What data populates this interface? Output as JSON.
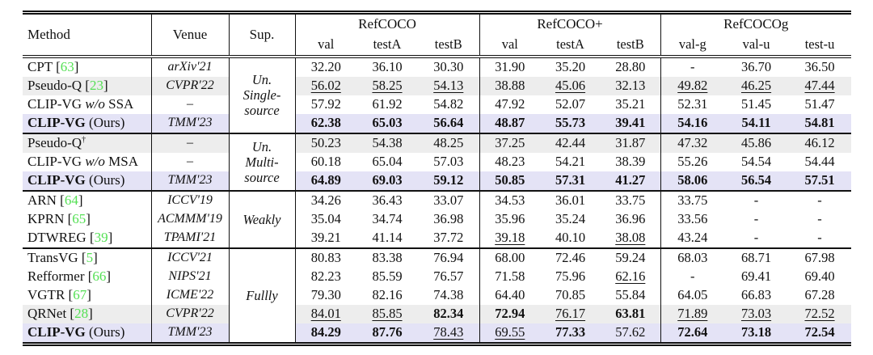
{
  "colors": {
    "citation_green": "#55e055",
    "row_gray": "#ededed",
    "row_lavender": "#e4e3f6",
    "rule_black": "#111111"
  },
  "table": {
    "headers": {
      "method": "Method",
      "venue": "Venue",
      "sup": "Sup.",
      "groups": [
        {
          "label": "RefCOCO",
          "cols": [
            "val",
            "testA",
            "testB"
          ]
        },
        {
          "label": "RefCOCO+",
          "cols": [
            "val",
            "testA",
            "testB"
          ]
        },
        {
          "label": "RefCOCOg",
          "cols": [
            "val-g",
            "val-u",
            "test-u"
          ]
        }
      ]
    },
    "sections": [
      {
        "sup": "Un.\nSingle-\nsource",
        "rows": [
          {
            "bg": "white",
            "venue": "arXiv'21",
            "method": [
              {
                "t": "CPT ["
              },
              {
                "t": "63",
                "s": "cite"
              },
              {
                "t": "]"
              }
            ],
            "values": [
              {
                "v": "32.20",
                "f": ""
              },
              {
                "v": "36.10",
                "f": ""
              },
              {
                "v": "30.30",
                "f": ""
              },
              {
                "v": "31.90",
                "f": ""
              },
              {
                "v": "35.20",
                "f": ""
              },
              {
                "v": "28.80",
                "f": ""
              },
              {
                "v": "-",
                "f": ""
              },
              {
                "v": "36.70",
                "f": ""
              },
              {
                "v": "36.50",
                "f": ""
              }
            ]
          },
          {
            "bg": "gray",
            "venue": "CVPR'22",
            "method": [
              {
                "t": "Pseudo-Q ["
              },
              {
                "t": "23",
                "s": "cite"
              },
              {
                "t": "]"
              }
            ],
            "values": [
              {
                "v": "56.02",
                "f": "u"
              },
              {
                "v": "58.25",
                "f": "u"
              },
              {
                "v": "54.13",
                "f": "u"
              },
              {
                "v": "38.88",
                "f": ""
              },
              {
                "v": "45.06",
                "f": "u"
              },
              {
                "v": "32.13",
                "f": ""
              },
              {
                "v": "49.82",
                "f": "u"
              },
              {
                "v": "46.25",
                "f": "u"
              },
              {
                "v": "47.44",
                "f": "u"
              }
            ]
          },
          {
            "bg": "white",
            "venue": "–",
            "method": [
              {
                "t": "CLIP-VG "
              },
              {
                "t": "w/o",
                "s": "i"
              },
              {
                "t": " SSA"
              }
            ],
            "values": [
              {
                "v": "57.92",
                "f": ""
              },
              {
                "v": "61.92",
                "f": ""
              },
              {
                "v": "54.82",
                "f": ""
              },
              {
                "v": "47.92",
                "f": ""
              },
              {
                "v": "52.07",
                "f": ""
              },
              {
                "v": "35.21",
                "f": ""
              },
              {
                "v": "52.31",
                "f": ""
              },
              {
                "v": "51.45",
                "f": ""
              },
              {
                "v": "51.47",
                "f": ""
              }
            ]
          },
          {
            "bg": "lav",
            "venue": "TMM'23",
            "method": [
              {
                "t": "CLIP-VG",
                "s": "b"
              },
              {
                "t": " (Ours)"
              }
            ],
            "values": [
              {
                "v": "62.38",
                "f": "b"
              },
              {
                "v": "65.03",
                "f": "b"
              },
              {
                "v": "56.64",
                "f": "b"
              },
              {
                "v": "48.87",
                "f": "b"
              },
              {
                "v": "55.73",
                "f": "b"
              },
              {
                "v": "39.41",
                "f": "b"
              },
              {
                "v": "54.16",
                "f": "b"
              },
              {
                "v": "54.11",
                "f": "b"
              },
              {
                "v": "54.81",
                "f": "b"
              }
            ]
          }
        ]
      },
      {
        "sup": "Un.\nMulti-\nsource",
        "rows": [
          {
            "bg": "gray",
            "venue": "–",
            "method": [
              {
                "t": "Pseudo-Q"
              },
              {
                "t": "†",
                "s": "dag"
              }
            ],
            "values": [
              {
                "v": "50.23",
                "f": ""
              },
              {
                "v": "54.38",
                "f": ""
              },
              {
                "v": "48.25",
                "f": ""
              },
              {
                "v": "37.25",
                "f": ""
              },
              {
                "v": "42.44",
                "f": ""
              },
              {
                "v": "31.87",
                "f": ""
              },
              {
                "v": "47.32",
                "f": ""
              },
              {
                "v": "45.86",
                "f": ""
              },
              {
                "v": "46.12",
                "f": ""
              }
            ]
          },
          {
            "bg": "white",
            "venue": "–",
            "method": [
              {
                "t": "CLIP-VG "
              },
              {
                "t": "w/o",
                "s": "i"
              },
              {
                "t": " MSA"
              }
            ],
            "values": [
              {
                "v": "60.18",
                "f": ""
              },
              {
                "v": "65.04",
                "f": ""
              },
              {
                "v": "57.03",
                "f": ""
              },
              {
                "v": "48.23",
                "f": ""
              },
              {
                "v": "54.21",
                "f": ""
              },
              {
                "v": "38.39",
                "f": ""
              },
              {
                "v": "55.26",
                "f": ""
              },
              {
                "v": "54.54",
                "f": ""
              },
              {
                "v": "54.44",
                "f": ""
              }
            ]
          },
          {
            "bg": "lav",
            "venue": "TMM'23",
            "method": [
              {
                "t": "CLIP-VG",
                "s": "b"
              },
              {
                "t": " (Ours)"
              }
            ],
            "values": [
              {
                "v": "64.89",
                "f": "b"
              },
              {
                "v": "69.03",
                "f": "b"
              },
              {
                "v": "59.12",
                "f": "b"
              },
              {
                "v": "50.85",
                "f": "b"
              },
              {
                "v": "57.31",
                "f": "b"
              },
              {
                "v": "41.27",
                "f": "b"
              },
              {
                "v": "58.06",
                "f": "b"
              },
              {
                "v": "56.54",
                "f": "b"
              },
              {
                "v": "57.51",
                "f": "b"
              }
            ]
          }
        ]
      },
      {
        "sup": "Weakly",
        "rows": [
          {
            "bg": "white",
            "venue": "ICCV'19",
            "method": [
              {
                "t": "ARN ["
              },
              {
                "t": "64",
                "s": "cite"
              },
              {
                "t": "]"
              }
            ],
            "values": [
              {
                "v": "34.26",
                "f": ""
              },
              {
                "v": "36.43",
                "f": ""
              },
              {
                "v": "33.07",
                "f": ""
              },
              {
                "v": "34.53",
                "f": ""
              },
              {
                "v": "36.01",
                "f": ""
              },
              {
                "v": "33.75",
                "f": ""
              },
              {
                "v": "33.75",
                "f": ""
              },
              {
                "v": "-",
                "f": ""
              },
              {
                "v": "-",
                "f": ""
              }
            ]
          },
          {
            "bg": "white",
            "venue": "ACMMM'19",
            "method": [
              {
                "t": "KPRN ["
              },
              {
                "t": "65",
                "s": "cite"
              },
              {
                "t": "]"
              }
            ],
            "values": [
              {
                "v": "35.04",
                "f": ""
              },
              {
                "v": "34.74",
                "f": ""
              },
              {
                "v": "36.98",
                "f": ""
              },
              {
                "v": "35.96",
                "f": ""
              },
              {
                "v": "35.24",
                "f": ""
              },
              {
                "v": "36.96",
                "f": ""
              },
              {
                "v": "33.56",
                "f": ""
              },
              {
                "v": "-",
                "f": ""
              },
              {
                "v": "-",
                "f": ""
              }
            ]
          },
          {
            "bg": "white",
            "venue": "TPAMI'21",
            "method": [
              {
                "t": "DTWREG ["
              },
              {
                "t": "39",
                "s": "cite"
              },
              {
                "t": "]"
              }
            ],
            "values": [
              {
                "v": "39.21",
                "f": ""
              },
              {
                "v": "41.14",
                "f": ""
              },
              {
                "v": "37.72",
                "f": ""
              },
              {
                "v": "39.18",
                "f": "u"
              },
              {
                "v": "40.10",
                "f": ""
              },
              {
                "v": "38.08",
                "f": "u"
              },
              {
                "v": "43.24",
                "f": ""
              },
              {
                "v": "-",
                "f": ""
              },
              {
                "v": "-",
                "f": ""
              }
            ]
          }
        ]
      },
      {
        "sup": "Fullly",
        "rows": [
          {
            "bg": "white",
            "venue": "ICCV'21",
            "method": [
              {
                "t": "TransVG ["
              },
              {
                "t": "5",
                "s": "cite"
              },
              {
                "t": "]"
              }
            ],
            "values": [
              {
                "v": "80.83",
                "f": ""
              },
              {
                "v": "83.38",
                "f": ""
              },
              {
                "v": "76.94",
                "f": ""
              },
              {
                "v": "68.00",
                "f": ""
              },
              {
                "v": "72.46",
                "f": ""
              },
              {
                "v": "59.24",
                "f": ""
              },
              {
                "v": "68.03",
                "f": ""
              },
              {
                "v": "68.71",
                "f": ""
              },
              {
                "v": "67.98",
                "f": ""
              }
            ]
          },
          {
            "bg": "white",
            "venue": "NIPS'21",
            "method": [
              {
                "t": "Refformer ["
              },
              {
                "t": "66",
                "s": "cite"
              },
              {
                "t": "]"
              }
            ],
            "values": [
              {
                "v": "82.23",
                "f": ""
              },
              {
                "v": "85.59",
                "f": ""
              },
              {
                "v": "76.57",
                "f": ""
              },
              {
                "v": "71.58",
                "f": ""
              },
              {
                "v": "75.96",
                "f": ""
              },
              {
                "v": "62.16",
                "f": "u"
              },
              {
                "v": "-",
                "f": ""
              },
              {
                "v": "69.41",
                "f": ""
              },
              {
                "v": "69.40",
                "f": ""
              }
            ]
          },
          {
            "bg": "white",
            "venue": "ICME'22",
            "method": [
              {
                "t": "VGTR ["
              },
              {
                "t": "67",
                "s": "cite"
              },
              {
                "t": "]"
              }
            ],
            "values": [
              {
                "v": "79.30",
                "f": ""
              },
              {
                "v": "82.16",
                "f": ""
              },
              {
                "v": "74.38",
                "f": ""
              },
              {
                "v": "64.40",
                "f": ""
              },
              {
                "v": "70.85",
                "f": ""
              },
              {
                "v": "55.84",
                "f": ""
              },
              {
                "v": "64.05",
                "f": ""
              },
              {
                "v": "66.83",
                "f": ""
              },
              {
                "v": "67.28",
                "f": ""
              }
            ]
          },
          {
            "bg": "gray",
            "venue": "CVPR'22",
            "method": [
              {
                "t": "QRNet ["
              },
              {
                "t": "28",
                "s": "cite"
              },
              {
                "t": "]"
              }
            ],
            "values": [
              {
                "v": "84.01",
                "f": "u"
              },
              {
                "v": "85.85",
                "f": "u"
              },
              {
                "v": "82.34",
                "f": "b"
              },
              {
                "v": "72.94",
                "f": "b"
              },
              {
                "v": "76.17",
                "f": "u"
              },
              {
                "v": "63.81",
                "f": "b"
              },
              {
                "v": "71.89",
                "f": "u"
              },
              {
                "v": "73.03",
                "f": "u"
              },
              {
                "v": "72.52",
                "f": "u"
              }
            ]
          },
          {
            "bg": "lav",
            "venue": "TMM'23",
            "method": [
              {
                "t": "CLIP-VG",
                "s": "b"
              },
              {
                "t": " (Ours)"
              }
            ],
            "values": [
              {
                "v": "84.29",
                "f": "b"
              },
              {
                "v": "87.76",
                "f": "b"
              },
              {
                "v": "78.43",
                "f": "u"
              },
              {
                "v": "69.55",
                "f": "u"
              },
              {
                "v": "77.33",
                "f": "b"
              },
              {
                "v": "57.62",
                "f": ""
              },
              {
                "v": "72.64",
                "f": "b"
              },
              {
                "v": "73.18",
                "f": "b"
              },
              {
                "v": "72.54",
                "f": "b"
              }
            ]
          }
        ]
      }
    ]
  }
}
